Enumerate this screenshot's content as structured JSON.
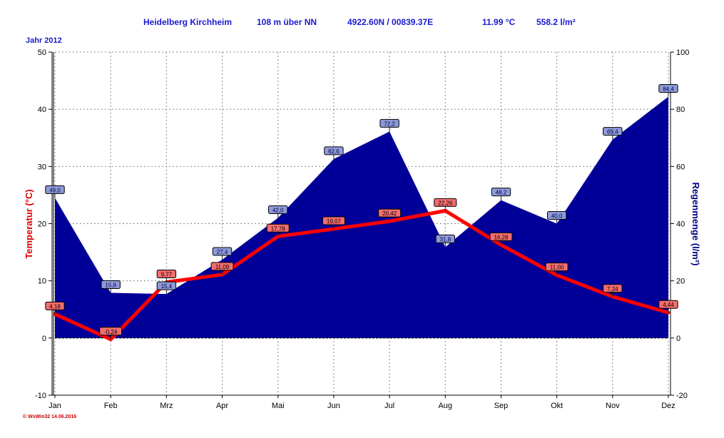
{
  "header": {
    "station": "Heidelberg Kirchheim",
    "altitude": "108 m über NN",
    "coords": "4922.60N / 00839.37E",
    "mean_temp": "11.99 °C",
    "total_rain": "558.2 l/m²"
  },
  "year_label": "Jahr  2012",
  "footer_note": "© WsWin32  14.06.2016",
  "colors": {
    "temperature": "#ff0000",
    "rain_fill": "#000099",
    "title": "#1a1ad0",
    "grid": "#888888"
  },
  "chart_data": {
    "type": "area+line",
    "categories": [
      "Jan",
      "Feb",
      "Mrz",
      "Apr",
      "Mai",
      "Jun",
      "Jul",
      "Aug",
      "Sep",
      "Okt",
      "Nov",
      "Dez"
    ],
    "series": [
      {
        "axis": "right",
        "type": "area",
        "values": [
          49.0,
          15.8,
          15.4,
          27.4,
          42.0,
          62.6,
          72.2,
          31.8,
          48.2,
          40.0,
          69.4,
          84.4
        ],
        "labels": [
          "49,0",
          "15,8",
          "15,4",
          "27,4",
          "42,0",
          "62,6",
          "72,2",
          "31,8",
          "48,2",
          "40,0",
          "69,4",
          "84,4"
        ]
      },
      {
        "axis": "left",
        "type": "line",
        "values": [
          4.18,
          -0.24,
          9.77,
          11.09,
          17.78,
          19.07,
          20.42,
          22.26,
          16.28,
          11.0,
          7.24,
          4.44
        ],
        "labels": [
          "4,18",
          "-0,24",
          "9,77",
          "11,09",
          "17,78",
          "19,07",
          "20,42",
          "22,26",
          "16,28",
          "11,00",
          "7,24",
          "4,44"
        ]
      }
    ],
    "ylabel_left": "Temperatur  (°C)",
    "ylabel_right": "Regenmenge  (l/m²)",
    "ylim_left": [
      -10,
      50
    ],
    "ylim_right": [
      -20,
      100
    ],
    "yticks_left": [
      "-10",
      "0",
      "10",
      "20",
      "30",
      "40",
      "50"
    ],
    "yticks_right": [
      "-20",
      "0",
      "20",
      "40",
      "60",
      "80",
      "100"
    ],
    "grid": true
  }
}
